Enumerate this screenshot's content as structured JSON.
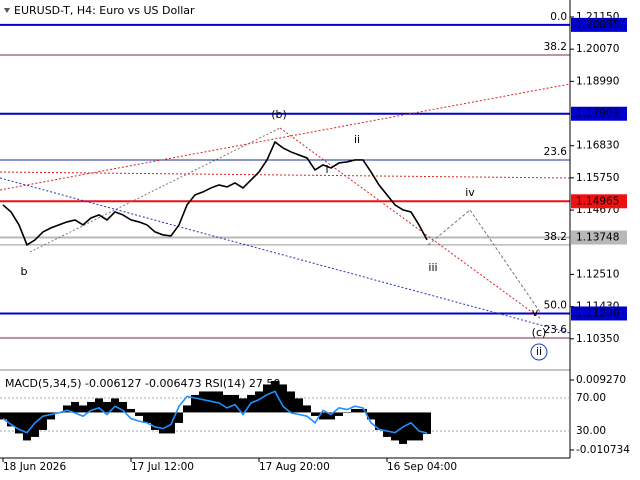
{
  "header": "EURUSD-T, H4:  Euro vs US Dollar",
  "chart_data": [
    {
      "type": "line",
      "categories": [
        "18 Jun 2026",
        null,
        null,
        null,
        null,
        null,
        null,
        null,
        null,
        null,
        null,
        null,
        null,
        null,
        null,
        null,
        "17 Jul 12:00",
        null,
        null,
        null,
        null,
        null,
        null,
        null,
        null,
        null,
        null,
        null,
        null,
        null,
        null,
        null,
        "17 Aug 20:00",
        null,
        null,
        null,
        null,
        null,
        null,
        null,
        null,
        null,
        null,
        null,
        null,
        null,
        null,
        null,
        "16 Sep 04:00",
        null,
        null,
        null,
        null,
        null
      ],
      "series": [
        {
          "color": "#000000",
          "values": [
            1.14843,
            1.14608,
            1.14172,
            1.13501,
            1.13668,
            1.13937,
            1.14071,
            1.14172,
            1.14272,
            1.14339,
            1.14172,
            1.14406,
            1.14507,
            1.14339,
            1.14608,
            1.14507,
            1.14339,
            1.14272,
            1.14172,
            1.13937,
            1.13836,
            1.13803,
            1.14172,
            1.14843,
            1.15178,
            1.15279,
            1.15413,
            1.15514,
            1.15446,
            1.15581,
            1.15413,
            1.15681,
            1.1595,
            1.16352,
            1.16956,
            1.16755,
            1.16621,
            1.1652,
            1.16419,
            1.16017,
            1.16185,
            1.16084,
            1.16252,
            1.16285,
            1.16352,
            1.16352,
            1.1595,
            1.15514,
            1.15178,
            1.14843,
            1.14675,
            1.14608,
            1.14172,
            1.13668
          ]
        }
      ],
      "ylim": [
        1.0937,
        1.2172
      ],
      "yticks": [
        {
          "value": 1.2115,
          "label": "1.21150"
        },
        {
          "value": 1.2007,
          "label": "1.20070"
        },
        {
          "value": 1.1899,
          "label": "1.18990"
        },
        {
          "value": 1.1683,
          "label": "1.16830"
        },
        {
          "value": 1.1575,
          "label": "1.15750"
        },
        {
          "value": 1.1467,
          "label": "1.14670"
        },
        {
          "value": 1.1251,
          "label": "1.12510"
        },
        {
          "value": 1.1143,
          "label": "1.11430"
        },
        {
          "value": 1.1035,
          "label": "1.10350"
        }
      ],
      "levels": [
        {
          "value": 1.20885,
          "label": "1.20885",
          "color": "#0000cd"
        },
        {
          "value": 1.17903,
          "label": "1.17903",
          "color": "#0000cd"
        },
        {
          "value": 1.14965,
          "label": "1.14965",
          "color": "#ee1111"
        },
        {
          "value": 1.13748,
          "label": "1.13748",
          "color": "#b8b8b8"
        },
        {
          "value": 1.112,
          "label": "1.11200",
          "color": "#0000cd"
        }
      ],
      "fib_levels": [
        {
          "value": 1.20885,
          "label": "0.0",
          "color": "#7a2a4a"
        },
        {
          "value": 1.19875,
          "label": "38.2",
          "color": "#7a2a4a"
        },
        {
          "value": 1.16352,
          "label": "23.6",
          "color": "#1e2f8f"
        },
        {
          "value": 1.13501,
          "label": "38.2",
          "color": "#999999"
        },
        {
          "value": 1.112,
          "label": "50.0",
          "color": "#1e2f8f"
        },
        {
          "value": 1.10377,
          "label": "23.6",
          "color": "#7a2a4a"
        }
      ],
      "wave_labels": [
        {
          "text": "(b)",
          "color": "#cc0000"
        },
        {
          "text": "ii",
          "color": "#666666"
        },
        {
          "text": "i",
          "color": "#666666"
        },
        {
          "text": "iv",
          "color": "#666666"
        },
        {
          "text": "iii",
          "color": "#666666"
        },
        {
          "text": "b",
          "color": "#666666"
        },
        {
          "text": "v",
          "color": "#666666"
        },
        {
          "text": "(c)",
          "color": "#cc0000"
        },
        {
          "text": "ii",
          "color": "#1e3fbf"
        }
      ]
    },
    {
      "type": "bar",
      "title": "MACD(5,34,5) -0.006127 -0.006473 RSI(14) 27.50",
      "series": [
        {
          "color": "#000000",
          "values": [
            -0.002,
            -0.004,
            -0.006,
            -0.008,
            -0.007,
            -0.005,
            -0.002,
            0.0,
            0.002,
            0.003,
            0.002,
            0.003,
            0.004,
            0.003,
            0.004,
            0.003,
            0.001,
            -0.001,
            -0.003,
            -0.005,
            -0.006,
            -0.006,
            -0.003,
            0.002,
            0.005,
            0.006,
            0.006,
            0.006,
            0.005,
            0.005,
            0.004,
            0.005,
            0.006,
            0.008,
            0.009,
            0.008,
            0.006,
            0.004,
            0.002,
            -0.001,
            -0.002,
            -0.002,
            -0.001,
            0.0,
            0.001,
            0.001,
            -0.002,
            -0.005,
            -0.007,
            -0.008,
            -0.009,
            -0.008,
            -0.008,
            -0.006127
          ]
        },
        {
          "color": "#1e90ff",
          "axis": "y2",
          "values": [
            45,
            38,
            32,
            28,
            40,
            48,
            50,
            52,
            55,
            52,
            48,
            55,
            58,
            50,
            60,
            55,
            45,
            42,
            40,
            35,
            33,
            38,
            60,
            72,
            70,
            68,
            66,
            64,
            58,
            62,
            50,
            64,
            68,
            74,
            78,
            60,
            52,
            50,
            48,
            40,
            55,
            50,
            58,
            56,
            60,
            58,
            40,
            32,
            30,
            28,
            35,
            40,
            30,
            27.5
          ]
        }
      ],
      "ylim": [
        -0.01302,
        0.01156
      ],
      "yticks": [
        {
          "value": 0.00927,
          "label": "0.009270"
        },
        {
          "value": -0.010734,
          "label": "-0.010734"
        }
      ],
      "y2lim": [
        -2.7,
        101.5
      ],
      "y2ticks": [
        {
          "value": 70,
          "label": "70.00"
        },
        {
          "value": 30,
          "label": "30.00"
        }
      ]
    }
  ]
}
